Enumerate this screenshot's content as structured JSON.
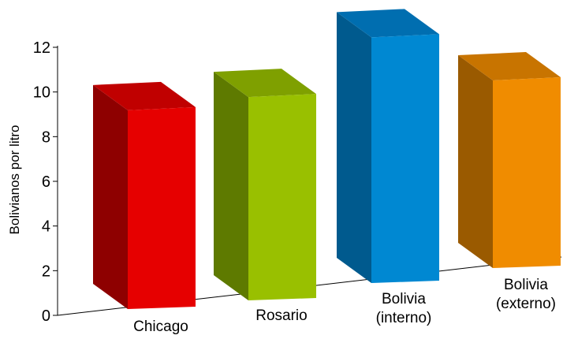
{
  "chart_data": {
    "type": "bar",
    "categories": [
      "Chicago",
      "Rosario",
      "Bolivia\n(interno)",
      "Bolivia\n(externo)"
    ],
    "series": [
      {
        "values": [
          8.9,
          9.1,
          11.0,
          8.4
        ]
      }
    ],
    "colors": {
      "front": [
        "#e60000",
        "#99c000",
        "#0088d2",
        "#f08c00"
      ],
      "side": [
        "#8e0000",
        "#5e7a00",
        "#005a8e",
        "#9a5a00"
      ],
      "top": [
        "#c00000",
        "#7fa000",
        "#006eb0",
        "#c87400"
      ]
    },
    "title": "",
    "xlabel": "",
    "ylabel": "Bolivianos por litro",
    "ylim": [
      0,
      12
    ],
    "yticks": [
      0,
      2,
      4,
      6,
      8,
      10,
      12
    ],
    "grid": false,
    "legend": "none",
    "style": "3d-bars"
  }
}
